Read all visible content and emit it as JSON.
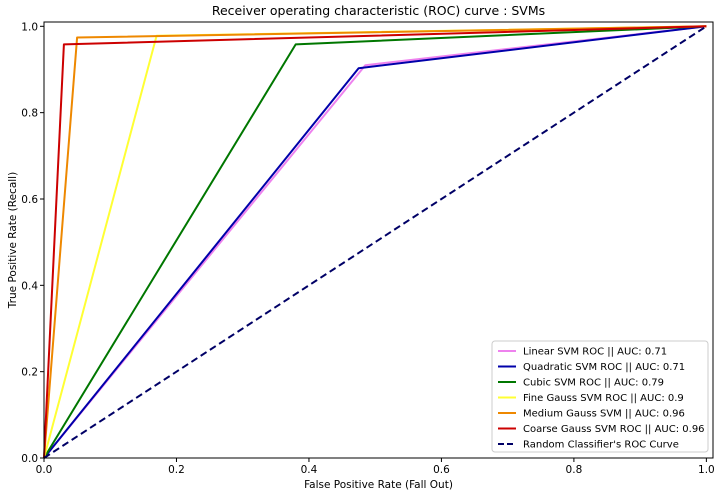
{
  "chart_data": {
    "type": "line",
    "title": "Receiver operating characteristic (ROC) curve : SVMs",
    "xlabel": "False Positive Rate (Fall Out)",
    "ylabel": "True Positive Rate (Recall)",
    "xlim": [
      0,
      1.01
    ],
    "ylim": [
      0,
      1.01
    ],
    "xticks": [
      "0.0",
      "0.2",
      "0.4",
      "0.6",
      "0.8",
      "1.0"
    ],
    "yticks": [
      "0.0",
      "0.2",
      "0.4",
      "0.6",
      "0.8",
      "1.0"
    ],
    "grid": false,
    "legend_position": "bottom-right",
    "series": [
      {
        "name": "Linear SVM ROC || AUC: 0.71",
        "color": "#ee82ee",
        "dashed": false,
        "x": [
          0,
          0.485,
          1.0
        ],
        "y": [
          0,
          0.91,
          1.0
        ]
      },
      {
        "name": "Quadratic SVM ROC || AUC: 0.71",
        "color": "#0000aa",
        "dashed": false,
        "x": [
          0,
          0.475,
          1.0
        ],
        "y": [
          0,
          0.903,
          1.0
        ]
      },
      {
        "name": "Cubic SVM ROC || AUC: 0.79",
        "color": "#007700",
        "dashed": false,
        "x": [
          0,
          0.38,
          1.0
        ],
        "y": [
          0,
          0.958,
          1.0
        ]
      },
      {
        "name": "Fine Gauss SVM ROC || AUC: 0.9",
        "color": "#ffff33",
        "dashed": false,
        "x": [
          0,
          0.17,
          1.0
        ],
        "y": [
          0,
          0.978,
          1.0
        ]
      },
      {
        "name": "Medium Gauss SVM || AUC: 0.96",
        "color": "#ee8800",
        "dashed": false,
        "x": [
          0,
          0.05,
          1.0
        ],
        "y": [
          0,
          0.974,
          1.0
        ]
      },
      {
        "name": "Coarse Gauss SVM ROC || AUC: 0.96",
        "color": "#cc0000",
        "dashed": false,
        "x": [
          0,
          0.03,
          1.0
        ],
        "y": [
          0,
          0.958,
          1.0
        ]
      },
      {
        "name": "Random Classifier's ROC Curve",
        "color": "#000066",
        "dashed": true,
        "x": [
          0,
          1.0
        ],
        "y": [
          0,
          1.0
        ]
      }
    ]
  }
}
